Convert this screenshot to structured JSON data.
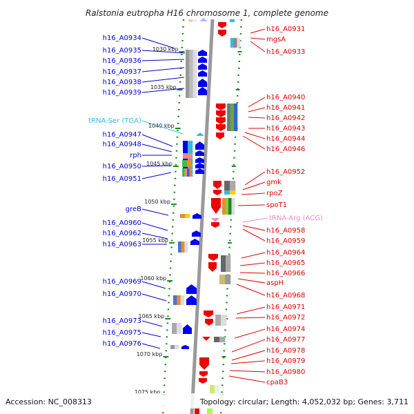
{
  "title": "Ralstonia eutropha H16 chromosome 1, complete genome",
  "footer": {
    "accession": "Accession: NC_008313",
    "topology": "Topology: circular; Length: 4,052,032 bp; Genes: 3,711"
  },
  "colors": {
    "forward_label": "#0000cc",
    "reverse_label": "#dd0000",
    "trna_ser_label": "#33bbdd",
    "trna_arg_label": "#ee88cc",
    "tick": "#228822",
    "backbone": "#999999"
  },
  "ticks": [
    "1030 kbp",
    "1035 kbp",
    "1040 kbp",
    "1045 kbp",
    "1050 kbp",
    "1055 kbp",
    "1060 kbp",
    "1065 kbp",
    "1070 kbp",
    "1075 kbp"
  ],
  "left_labels": [
    {
      "text": "h16_A0934",
      "type": "gene"
    },
    {
      "text": "h16_A0935",
      "type": "gene"
    },
    {
      "text": "h16_A0936",
      "type": "gene"
    },
    {
      "text": "h16_A0937",
      "type": "gene"
    },
    {
      "text": "h16_A0938",
      "type": "gene"
    },
    {
      "text": "h16_A0939",
      "type": "gene"
    },
    {
      "text": "tRNA-Ser (TGA)",
      "type": "trna"
    },
    {
      "text": "h16_A0947",
      "type": "gene"
    },
    {
      "text": "h16_A0948",
      "type": "gene"
    },
    {
      "text": "rph",
      "type": "gene"
    },
    {
      "text": "h16_A0950",
      "type": "gene"
    },
    {
      "text": "h16_A0951",
      "type": "gene"
    },
    {
      "text": "greB",
      "type": "gene"
    },
    {
      "text": "h16_A0960",
      "type": "gene"
    },
    {
      "text": "h16_A0962",
      "type": "gene"
    },
    {
      "text": "h16_A0963",
      "type": "gene"
    },
    {
      "text": "h16_A0969",
      "type": "gene"
    },
    {
      "text": "h16_A0970",
      "type": "gene"
    },
    {
      "text": "h16_A0973",
      "type": "gene"
    },
    {
      "text": "h16_A0975",
      "type": "gene"
    },
    {
      "text": "h16_A0976",
      "type": "gene"
    }
  ],
  "right_labels": [
    {
      "text": "h16_A0931",
      "type": "gene"
    },
    {
      "text": "mgsA",
      "type": "gene"
    },
    {
      "text": "h16_A0933",
      "type": "gene"
    },
    {
      "text": "h16_A0940",
      "type": "gene"
    },
    {
      "text": "h16_A0941",
      "type": "gene"
    },
    {
      "text": "h16_A0942",
      "type": "gene"
    },
    {
      "text": "h16_A0943",
      "type": "gene"
    },
    {
      "text": "h16_A0944",
      "type": "gene"
    },
    {
      "text": "h16_A0946",
      "type": "gene"
    },
    {
      "text": "h16_A0952",
      "type": "gene"
    },
    {
      "text": "gmk",
      "type": "gene"
    },
    {
      "text": "rpoZ",
      "type": "gene"
    },
    {
      "text": "spoT1",
      "type": "gene"
    },
    {
      "text": "tRNA-Arg (ACG)",
      "type": "trna"
    },
    {
      "text": "h16_A0958",
      "type": "gene"
    },
    {
      "text": "h16_A0959",
      "type": "gene"
    },
    {
      "text": "h16_A0964",
      "type": "gene"
    },
    {
      "text": "h16_A0965",
      "type": "gene"
    },
    {
      "text": "h16_A0966",
      "type": "gene"
    },
    {
      "text": "aspH",
      "type": "gene"
    },
    {
      "text": "h16_A0968",
      "type": "gene"
    },
    {
      "text": "h16_A0971",
      "type": "gene"
    },
    {
      "text": "h16_A0972",
      "type": "gene"
    },
    {
      "text": "h16_A0974",
      "type": "gene"
    },
    {
      "text": "h16_A0977",
      "type": "gene"
    },
    {
      "text": "h16_A0978",
      "type": "gene"
    },
    {
      "text": "h16_A0979",
      "type": "gene"
    },
    {
      "text": "h16_A0980",
      "type": "gene"
    },
    {
      "text": "cpaB3",
      "type": "gene"
    }
  ]
}
